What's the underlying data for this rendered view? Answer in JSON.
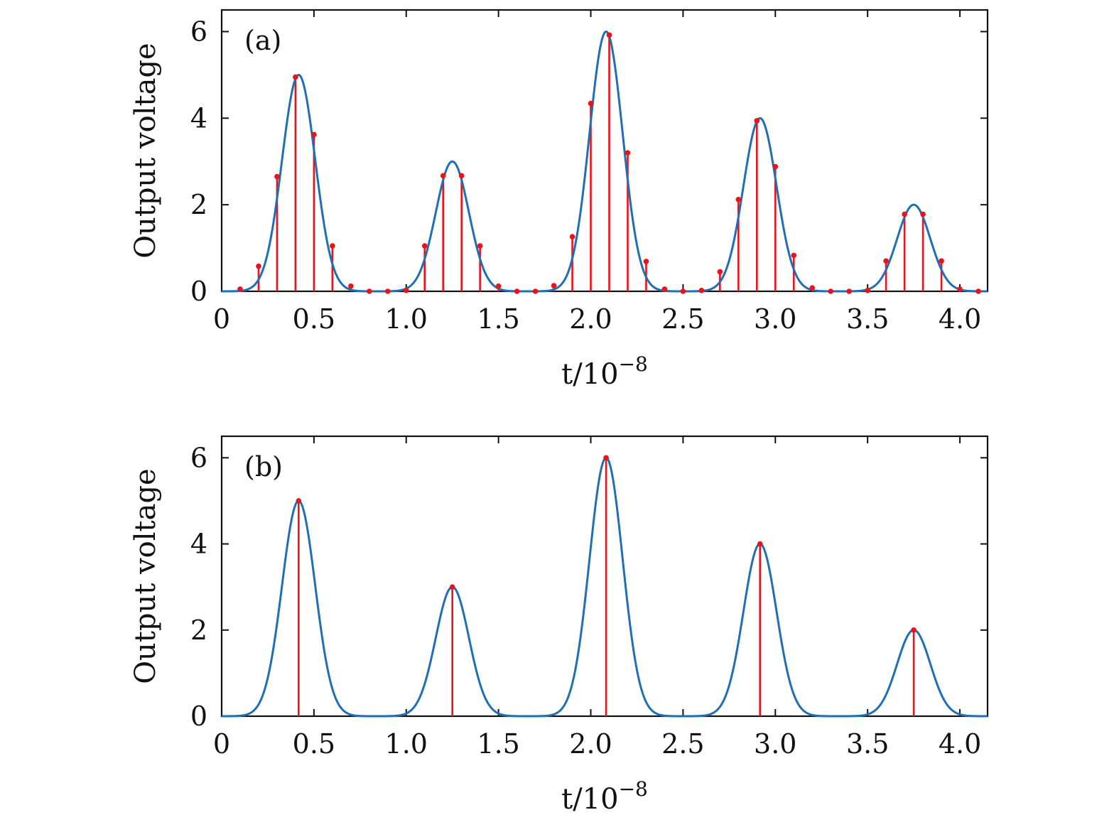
{
  "colors": {
    "curve": "#1f6fb4",
    "stem": "#e8141b",
    "axis": "#111111"
  },
  "chart_data": [
    {
      "type": "line",
      "panel_label": "(a)",
      "ylabel": "Output voltage",
      "xlabel_base": "t/10",
      "xlabel_exp": "−8",
      "xlim": [
        0,
        4.15
      ],
      "ylim": [
        0,
        6.5
      ],
      "x_ticks": [
        0,
        0.5,
        1.0,
        1.5,
        2.0,
        2.5,
        3.0,
        3.5,
        4.0
      ],
      "x_tick_labels": [
        "0",
        "0.5",
        "1.0",
        "1.5",
        "2.0",
        "2.5",
        "3.0",
        "3.5",
        "4.0"
      ],
      "y_ticks": [
        0,
        2,
        4,
        6
      ],
      "y_tick_labels": [
        "0",
        "2",
        "4",
        "6"
      ],
      "pulses": [
        {
          "center": 0.417,
          "amplitude": 5,
          "sigma": 0.09
        },
        {
          "center": 1.25,
          "amplitude": 3,
          "sigma": 0.09
        },
        {
          "center": 2.083,
          "amplitude": 6,
          "sigma": 0.09
        },
        {
          "center": 2.917,
          "amplitude": 4,
          "sigma": 0.09
        },
        {
          "center": 3.75,
          "amplitude": 2,
          "sigma": 0.09
        }
      ],
      "samples": {
        "x": [
          0.1,
          0.2,
          0.3,
          0.4,
          0.5,
          0.6,
          0.7,
          0.8,
          0.9,
          1.0,
          1.1,
          1.2,
          1.3,
          1.4,
          1.5,
          1.6,
          1.7,
          1.8,
          1.9,
          2.0,
          2.1,
          2.2,
          2.3,
          2.4,
          2.5,
          2.6,
          2.7,
          2.8,
          2.9,
          3.0,
          3.1,
          3.2,
          3.3,
          3.4,
          3.5,
          3.6,
          3.7,
          3.8,
          3.9,
          4.0,
          4.1
        ],
        "y": [
          0.05,
          0.58,
          2.65,
          4.95,
          3.62,
          1.05,
          0.12,
          0.0,
          0.0,
          0.02,
          1.05,
          2.67,
          2.67,
          1.05,
          0.12,
          0.0,
          0.0,
          0.13,
          1.26,
          4.34,
          5.92,
          3.2,
          0.69,
          0.05,
          0.0,
          0.02,
          0.45,
          2.12,
          3.94,
          2.88,
          0.83,
          0.08,
          0.0,
          0.0,
          0.02,
          0.7,
          1.78,
          1.78,
          0.7,
          0.05,
          0.0
        ]
      }
    },
    {
      "type": "line",
      "panel_label": "(b)",
      "ylabel": "Output voltage",
      "xlabel_base": "t/10",
      "xlabel_exp": "−8",
      "xlim": [
        0,
        4.15
      ],
      "ylim": [
        0,
        6.5
      ],
      "x_ticks": [
        0,
        0.5,
        1.0,
        1.5,
        2.0,
        2.5,
        3.0,
        3.5,
        4.0
      ],
      "x_tick_labels": [
        "0",
        "0.5",
        "1.0",
        "1.5",
        "2.0",
        "2.5",
        "3.0",
        "3.5",
        "4.0"
      ],
      "y_ticks": [
        0,
        2,
        4,
        6
      ],
      "y_tick_labels": [
        "0",
        "2",
        "4",
        "6"
      ],
      "pulses": [
        {
          "center": 0.417,
          "amplitude": 5,
          "sigma": 0.09
        },
        {
          "center": 1.25,
          "amplitude": 3,
          "sigma": 0.09
        },
        {
          "center": 2.083,
          "amplitude": 6,
          "sigma": 0.09
        },
        {
          "center": 2.917,
          "amplitude": 4,
          "sigma": 0.09
        },
        {
          "center": 3.75,
          "amplitude": 2,
          "sigma": 0.09
        }
      ],
      "samples": {
        "x": [
          0.417,
          1.25,
          2.083,
          2.917,
          3.75
        ],
        "y": [
          5,
          3,
          6,
          4,
          2
        ]
      }
    }
  ]
}
